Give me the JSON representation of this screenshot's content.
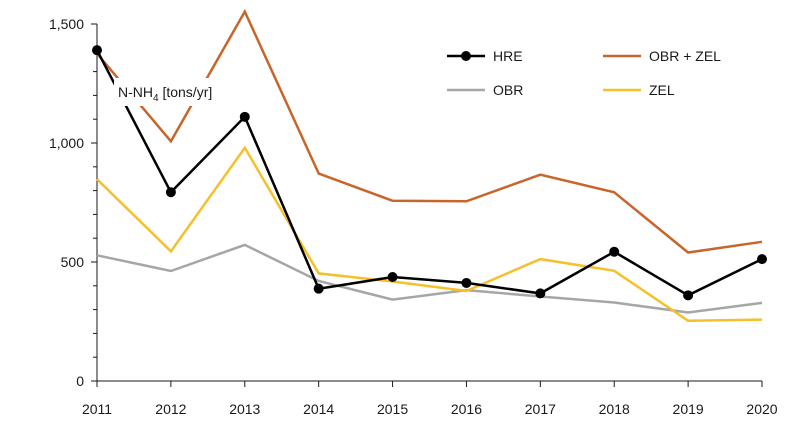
{
  "chart_data": {
    "type": "line",
    "title": "",
    "xlabel": "",
    "ylabel": {
      "prefix": "N-NH",
      "subscript": "4",
      "suffix": " [tons/yr]"
    },
    "categories": [
      "2011",
      "2012",
      "2013",
      "2014",
      "2015",
      "2016",
      "2017",
      "2018",
      "2019",
      "2020"
    ],
    "ylim": [
      0,
      1500
    ],
    "yticks": [
      0,
      500,
      1000,
      1500
    ],
    "ytick_labels": [
      "0",
      "500",
      "1,000",
      "1,500"
    ],
    "grid": false,
    "legend_position": "top-right",
    "series": [
      {
        "name": "OBR",
        "color": "#a6a6a6",
        "markers": false,
        "values": [
          528,
          462,
          572,
          420,
          342,
          382,
          355,
          330,
          288,
          328
        ]
      },
      {
        "name": "ZEL",
        "color": "#f5c02a",
        "markers": false,
        "values": [
          848,
          545,
          980,
          452,
          418,
          378,
          512,
          463,
          253,
          258
        ]
      },
      {
        "name": "OBR + ZEL",
        "color": "#c8652a",
        "markers": false,
        "values": [
          1376,
          1007,
          1552,
          872,
          757,
          755,
          867,
          793,
          540,
          585
        ]
      },
      {
        "name": "HRE",
        "color": "#000000",
        "markers": true,
        "values": [
          1390,
          793,
          1110,
          388,
          437,
          412,
          368,
          543,
          360,
          512
        ]
      }
    ],
    "legend_order": [
      "HRE",
      "OBR + ZEL",
      "OBR",
      "ZEL"
    ]
  }
}
